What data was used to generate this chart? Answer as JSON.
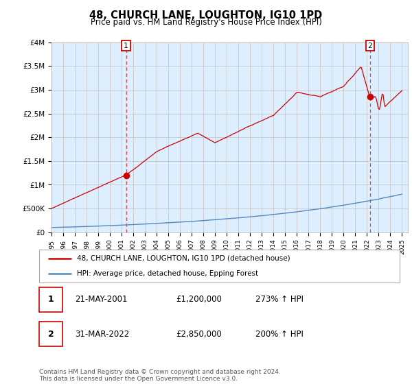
{
  "title": "48, CHURCH LANE, LOUGHTON, IG10 1PD",
  "subtitle": "Price paid vs. HM Land Registry's House Price Index (HPI)",
  "legend_line1": "48, CHURCH LANE, LOUGHTON, IG10 1PD (detached house)",
  "legend_line2": "HPI: Average price, detached house, Epping Forest",
  "footnote": "Contains HM Land Registry data © Crown copyright and database right 2024.\nThis data is licensed under the Open Government Licence v3.0.",
  "table_rows": [
    {
      "num": "1",
      "date": "21-MAY-2001",
      "price": "£1,200,000",
      "change": "273% ↑ HPI"
    },
    {
      "num": "2",
      "date": "31-MAR-2022",
      "price": "£2,850,000",
      "change": "200% ↑ HPI"
    }
  ],
  "point1": {
    "year": 2001.38,
    "value": 1200000,
    "label": "1"
  },
  "point2": {
    "year": 2022.25,
    "value": 2850000,
    "label": "2"
  },
  "red_color": "#cc0000",
  "blue_color": "#5588bb",
  "fill_color": "#ddeeff",
  "grid_color": "#cccccc",
  "background_color": "#ffffff",
  "ylim": [
    0,
    4000000
  ],
  "xlim_start": 1995.0,
  "xlim_end": 2025.5,
  "yticks": [
    0,
    500000,
    1000000,
    1500000,
    2000000,
    2500000,
    3000000,
    3500000,
    4000000
  ],
  "ytick_labels": [
    "£0",
    "£500K",
    "£1M",
    "£1.5M",
    "£2M",
    "£2.5M",
    "£3M",
    "£3.5M",
    "£4M"
  ]
}
